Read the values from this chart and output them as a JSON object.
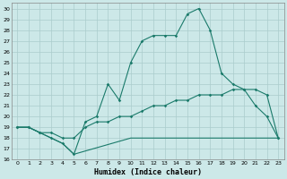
{
  "xlabel": "Humidex (Indice chaleur)",
  "bg_color": "#cce8e8",
  "grid_color": "#aacccc",
  "line_color": "#1a7a6a",
  "xlim": [
    -0.5,
    23.5
  ],
  "ylim": [
    16,
    30.5
  ],
  "xticks": [
    0,
    1,
    2,
    3,
    4,
    5,
    6,
    7,
    8,
    9,
    10,
    11,
    12,
    13,
    14,
    15,
    16,
    17,
    18,
    19,
    20,
    21,
    22,
    23
  ],
  "yticks": [
    16,
    17,
    18,
    19,
    20,
    21,
    22,
    23,
    24,
    25,
    26,
    27,
    28,
    29,
    30
  ],
  "curve1_x": [
    0,
    1,
    2,
    3,
    4,
    5,
    6,
    7,
    8,
    9,
    10,
    11,
    12,
    13,
    14,
    15,
    16,
    17,
    18,
    19,
    20,
    21,
    22,
    23
  ],
  "curve1_y": [
    19,
    19,
    18.5,
    18,
    17.5,
    16.5,
    19.5,
    20,
    23,
    21.5,
    25,
    27,
    27.5,
    27.5,
    27.5,
    29.5,
    30,
    28,
    24,
    23,
    22.5,
    21,
    20,
    18
  ],
  "curve2_x": [
    0,
    1,
    2,
    3,
    4,
    5,
    6,
    7,
    8,
    9,
    10,
    11,
    12,
    13,
    14,
    15,
    16,
    17,
    18,
    19,
    20,
    21,
    22,
    23
  ],
  "curve2_y": [
    19,
    19,
    18.5,
    18.5,
    18,
    18,
    19,
    19.5,
    19.5,
    20,
    20,
    20.5,
    21,
    21,
    21.5,
    21.5,
    22,
    22,
    22,
    22.5,
    22.5,
    22.5,
    22,
    18
  ],
  "curve3_x": [
    0,
    1,
    2,
    3,
    4,
    5,
    10,
    23
  ],
  "curve3_y": [
    19,
    19,
    18.5,
    18,
    17.5,
    16.5,
    18,
    18
  ]
}
